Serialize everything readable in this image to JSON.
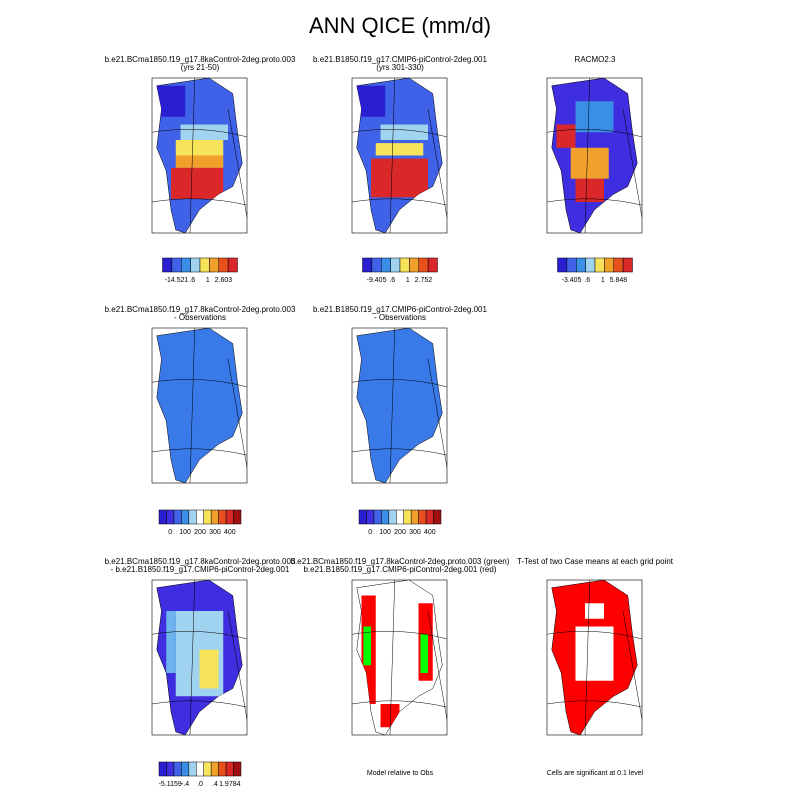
{
  "title": "ANN QICE (mm/d)",
  "panels": [
    {
      "title": [
        "b.e21.BCma1850.f19_g17.8kaControl-2deg.proto.003",
        "(yrs 21-50)"
      ],
      "colorbar_labels": [
        "-14.521",
        ".6",
        "1",
        "2.603"
      ]
    },
    {
      "title": [
        "b.e21.B1850.f19_g17.CMIP6-piControl-2deg.001",
        "(yrs 301-330)"
      ],
      "colorbar_labels": [
        "-9.405",
        ".6",
        "1",
        "2.752"
      ]
    },
    {
      "title": [
        "RACMO2.3"
      ],
      "colorbar_labels": [
        "-3.405",
        ".6",
        "1",
        "5.848"
      ]
    },
    {
      "title": [
        "b.e21.BCma1850.f19_g17.8kaControl-2deg.proto.003",
        "- Observations"
      ],
      "colorbar_labels": [
        "0",
        "100",
        "200",
        "300",
        "400"
      ]
    },
    {
      "title": [
        "b.e21.B1850.f19_g17.CMIP6-piControl-2deg.001",
        "- Observations"
      ],
      "colorbar_labels": [
        "0",
        "100",
        "200",
        "300",
        "400"
      ]
    },
    {
      "title": [
        "b.e21.BCma1850.f19_g17.8kaControl-2deg.proto.003",
        "- b.e21.B1850.f19_g17.CMIP6-piControl-2deg.001"
      ],
      "colorbar_labels": [
        "-5.1159",
        "-.4",
        ".0",
        ".4",
        "1.9784"
      ]
    },
    {
      "title": [
        "b.e21.BCma1850.f19_g17.8kaControl-2deg.proto.003 (green)",
        "b.e21.B1850.f19_g17.CMIP6-piControl-2deg.001 (red)"
      ],
      "footnote": "Model relative to Obs"
    },
    {
      "title": [
        "T-Test of two Case means at each grid point"
      ],
      "footnote": "Cells are significant at 0.1 level"
    }
  ]
}
